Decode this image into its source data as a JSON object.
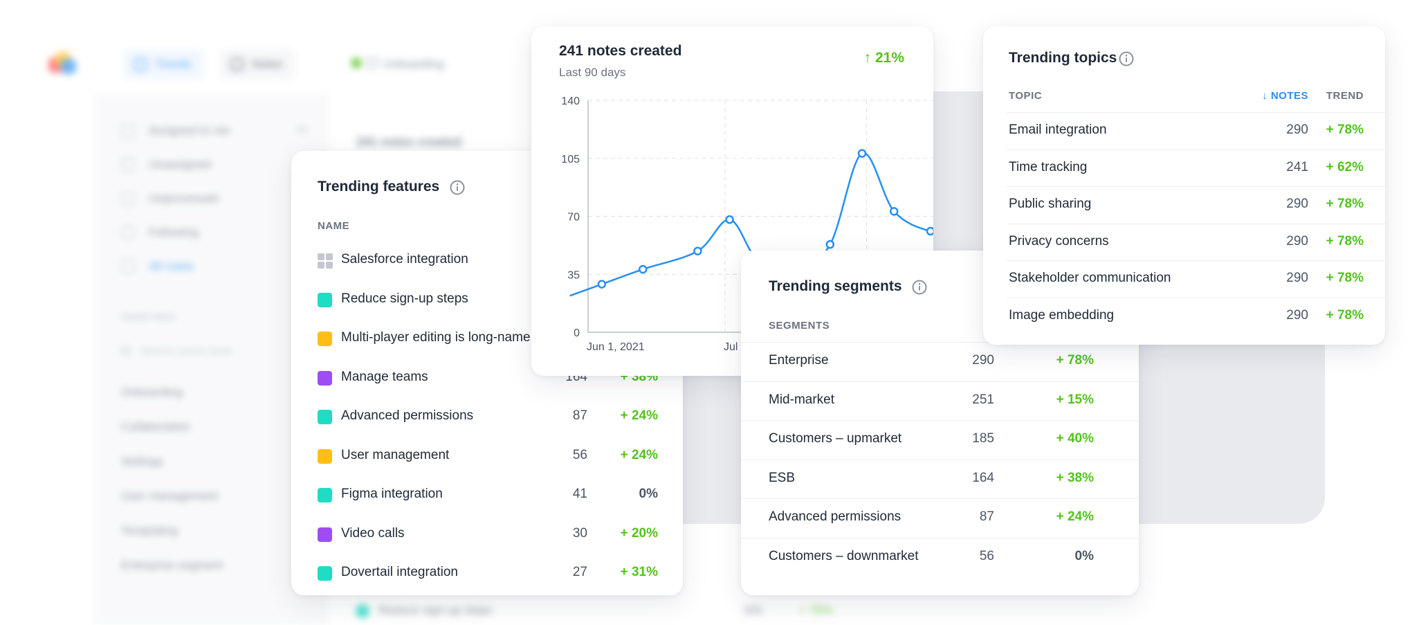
{
  "background_app": {
    "nav_tabs": [
      {
        "label": "Trends",
        "active": true
      },
      {
        "label": "Notes",
        "active": false
      }
    ],
    "filter_label": "Unboarding",
    "sidebar_items": [
      {
        "label": "Assigned to me",
        "count": "12"
      },
      {
        "label": "Unassigned",
        "count": ""
      },
      {
        "label": "Unprocessed",
        "count": "2"
      },
      {
        "label": "Following",
        "count": ""
      },
      {
        "label": "All notes",
        "count": "8"
      }
    ],
    "sidebar_section": "Saved views",
    "search_placeholder": "Search saved views",
    "sidebar_groups": [
      {
        "label": "Onboarding",
        "count": "24"
      },
      {
        "label": "Collaboration",
        "count": "18"
      },
      {
        "label": "Settings",
        "count": "12"
      },
      {
        "label": "User management",
        "count": "9"
      },
      {
        "label": "Templating",
        "count": "6"
      },
      {
        "label": "Enterprise segment",
        "count": "4"
      }
    ],
    "main_heading": "241 notes created",
    "bottom_row_label": "Reduce sign-up steps",
    "bottom_row_count": "201",
    "bottom_row_trend": "+ 78%"
  },
  "colors": {
    "accent_blue": "#2590f3",
    "trend_green": "#52c41a",
    "teal": "#1fdcc4",
    "yellow": "#ffbe14",
    "purple": "#a04cf3",
    "gray_swatch": "#c3c8d0"
  },
  "chart_card": {
    "title": "241 notes created",
    "subtitle": "Last 90 days",
    "delta": "↑ 21%",
    "chart_data": {
      "type": "line",
      "title": "241 notes created",
      "subtitle": "Last 90 days",
      "ylim": [
        0,
        140
      ],
      "yticks": [
        0,
        35,
        70,
        105,
        140
      ],
      "xticks": [
        "Jun 1, 2021",
        "Jul 1, 2021"
      ],
      "grid": true,
      "series": [
        {
          "values": [
            {
              "x": "2021-05-28",
              "y": 22
            },
            {
              "x": "2021-06-04",
              "y": 29
            },
            {
              "x": "2021-06-13",
              "y": 38
            },
            {
              "x": "2021-06-25",
              "y": 49
            },
            {
              "x": "2021-07-02",
              "y": 68
            },
            {
              "x": "2021-07-08",
              "y": 44
            },
            {
              "x": "2021-07-16",
              "y": 35
            },
            {
              "x": "2021-07-24",
              "y": 53
            },
            {
              "x": "2021-07-31",
              "y": 108
            },
            {
              "x": "2021-08-07",
              "y": 73
            },
            {
              "x": "2021-08-15",
              "y": 61
            },
            {
              "x": "2021-08-20",
              "y": 63
            }
          ]
        }
      ]
    }
  },
  "features_card": {
    "title": "Trending features",
    "col_name": "NAME",
    "rows": [
      {
        "label": "Salesforce integration",
        "count": "",
        "trend": "",
        "swatch": "grid"
      },
      {
        "label": "Reduce sign-up steps",
        "count": "",
        "trend": "",
        "swatch": "teal"
      },
      {
        "label": "Multi-player editing is long-name",
        "count": "",
        "trend": "",
        "swatch": "yellow"
      },
      {
        "label": "Manage teams",
        "count": "164",
        "trend": "+ 38%",
        "swatch": "purple"
      },
      {
        "label": "Advanced permissions",
        "count": "87",
        "trend": "+ 24%",
        "swatch": "teal"
      },
      {
        "label": "User management",
        "count": "56",
        "trend": "+ 24%",
        "swatch": "yellow"
      },
      {
        "label": "Figma integration",
        "count": "41",
        "trend": "0%",
        "swatch": "teal"
      },
      {
        "label": "Video calls",
        "count": "30",
        "trend": "+ 20%",
        "swatch": "purple"
      },
      {
        "label": "Dovertail integration",
        "count": "27",
        "trend": "+ 31%",
        "swatch": "teal"
      }
    ]
  },
  "segments_card": {
    "title": "Trending segments",
    "col_segments": "SEGMENTS",
    "rows": [
      {
        "label": "Enterprise",
        "count": "290",
        "trend": "+ 78%"
      },
      {
        "label": "Mid-market",
        "count": "251",
        "trend": "+ 15%"
      },
      {
        "label": "Customers – upmarket",
        "count": "185",
        "trend": "+ 40%"
      },
      {
        "label": "ESB",
        "count": "164",
        "trend": "+ 38%"
      },
      {
        "label": "Advanced permissions",
        "count": "87",
        "trend": "+ 24%"
      },
      {
        "label": "Customers – downmarket",
        "count": "56",
        "trend": "0%"
      }
    ]
  },
  "topics_card": {
    "title": "Trending topics",
    "col_topic": "TOPIC",
    "col_notes": "↓ NOTES",
    "col_trend": "TREND",
    "rows": [
      {
        "label": "Email integration",
        "count": "290",
        "trend": "+ 78%"
      },
      {
        "label": "Time tracking",
        "count": "241",
        "trend": "+ 62%"
      },
      {
        "label": "Public sharing",
        "count": "290",
        "trend": "+ 78%"
      },
      {
        "label": "Privacy concerns",
        "count": "290",
        "trend": "+ 78%"
      },
      {
        "label": "Stakeholder communication",
        "count": "290",
        "trend": "+ 78%"
      },
      {
        "label": "Image embedding",
        "count": "290",
        "trend": "+ 78%"
      }
    ]
  }
}
